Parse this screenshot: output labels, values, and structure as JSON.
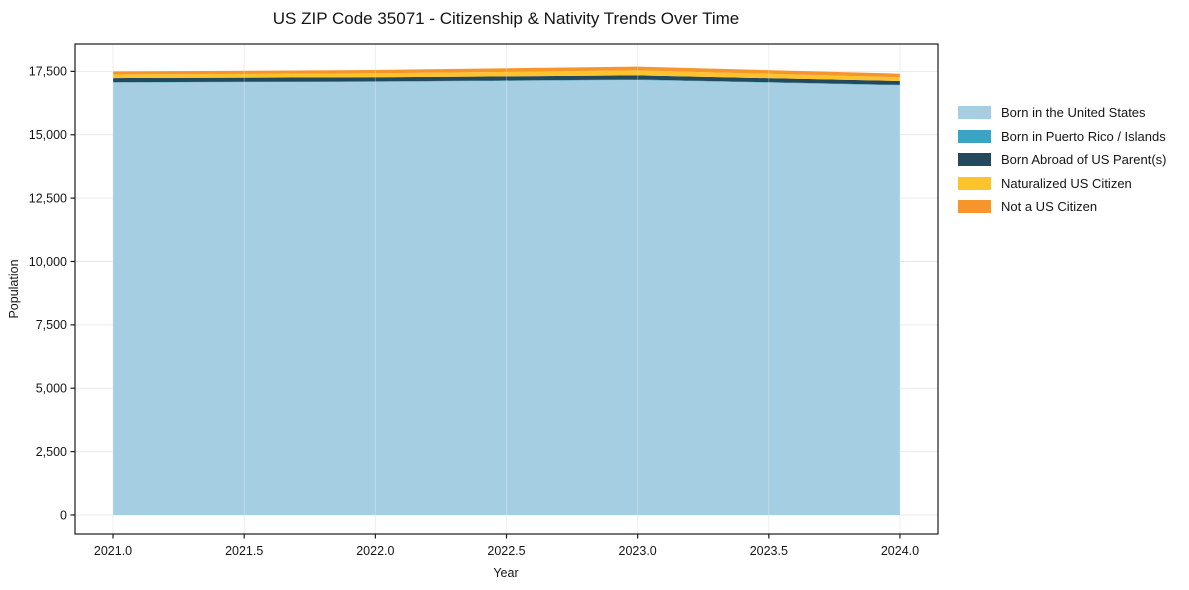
{
  "chart_data": {
    "type": "area",
    "stacked": true,
    "title": "US ZIP Code 35071 - Citizenship & Nativity Trends Over Time",
    "xlabel": "Year",
    "ylabel": "Population",
    "x": [
      2021,
      2022,
      2023,
      2024
    ],
    "series": [
      {
        "name": "Born in the United States",
        "color": "#a5cee3",
        "values": [
          17060,
          17090,
          17160,
          16950
        ]
      },
      {
        "name": "Born in Puerto Rico / Islands",
        "color": "#3ba3c3",
        "values": [
          15,
          15,
          20,
          15
        ]
      },
      {
        "name": "Born Abroad of US Parent(s)",
        "color": "#25495c",
        "values": [
          160,
          160,
          160,
          155
        ]
      },
      {
        "name": "Naturalized US Citizen",
        "color": "#fcc32d",
        "values": [
          140,
          160,
          200,
          145
        ]
      },
      {
        "name": "Not a US Citizen",
        "color": "#f6952a",
        "values": [
          120,
          130,
          150,
          145
        ]
      }
    ],
    "xlim": [
      2020.855,
      2024.145
    ],
    "ylim": [
      -750,
      18580
    ],
    "xticks": {
      "values": [
        2021.0,
        2021.5,
        2022.0,
        2022.5,
        2023.0,
        2023.5,
        2024.0
      ],
      "labels": [
        "2021.0",
        "2021.5",
        "2022.0",
        "2022.5",
        "2023.0",
        "2023.5",
        "2024.0"
      ]
    },
    "yticks": {
      "values": [
        0,
        2500,
        5000,
        7500,
        10000,
        12500,
        15000,
        17500
      ],
      "labels": [
        "0",
        "2,500",
        "5,000",
        "7,500",
        "10,000",
        "12,500",
        "15,000",
        "17,500"
      ]
    },
    "grid": true,
    "grid_color": "#e9e9e9",
    "axis_color": "#1a1a1a",
    "tick_label_color": "#151515",
    "legend_position": "right"
  }
}
